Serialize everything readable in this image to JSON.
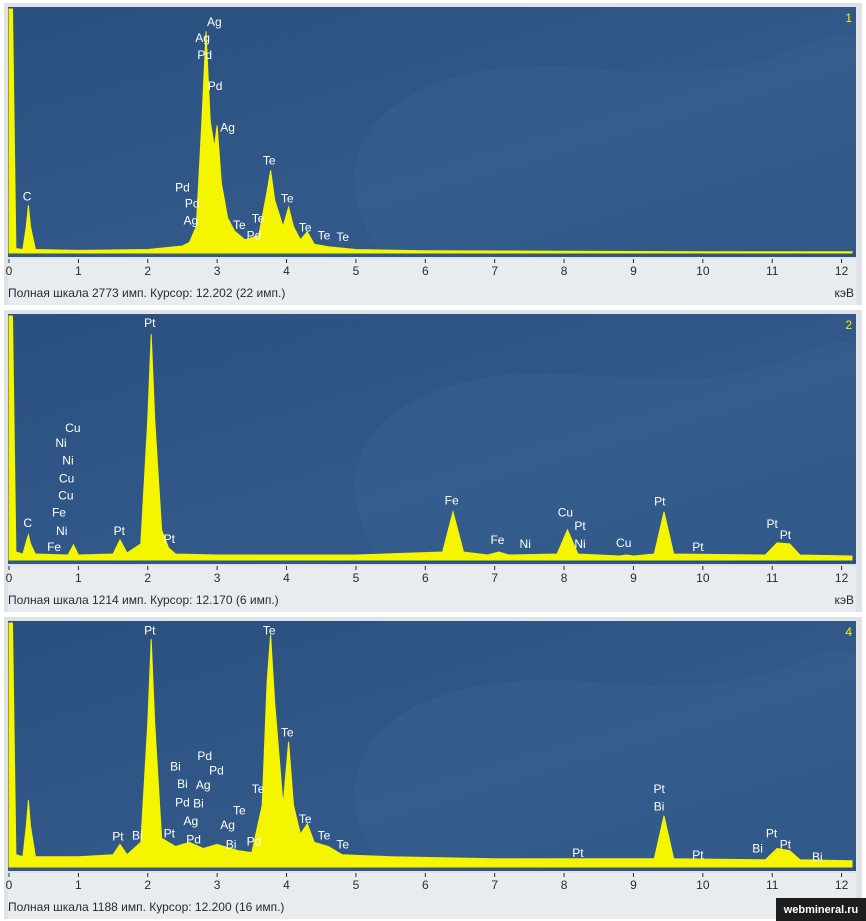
{
  "chart_data": [
    {
      "type": "area",
      "panel": "1",
      "color": "#f5f500",
      "unit": "кэВ",
      "footer": "Полная шкала 2773 имп. Курсор: 12.202  (22 имп.)",
      "xlim": [
        0,
        12.15
      ],
      "ylim": [
        0,
        2773
      ],
      "xticks": [
        0,
        1,
        2,
        3,
        4,
        5,
        6,
        7,
        8,
        9,
        10,
        11,
        12
      ],
      "x": [
        0,
        0,
        0.05,
        0.1,
        0.2,
        0.25,
        0.28,
        0.31,
        0.38,
        1,
        2,
        2.5,
        2.6,
        2.7,
        2.78,
        2.84,
        2.9,
        2.96,
        3.0,
        3.06,
        3.15,
        3.25,
        3.4,
        3.6,
        3.72,
        3.77,
        3.83,
        3.95,
        4.03,
        4.1,
        4.2,
        4.3,
        4.4,
        4.6,
        5,
        6,
        8,
        10,
        12.15,
        12.15
      ],
      "values": [
        0,
        2773,
        2773,
        50,
        40,
        300,
        543,
        300,
        40,
        30,
        40,
        80,
        120,
        300,
        1500,
        2520,
        1500,
        1200,
        1450,
        800,
        400,
        250,
        150,
        200,
        700,
        940,
        600,
        300,
        520,
        300,
        150,
        240,
        100,
        70,
        40,
        25,
        20,
        15,
        15,
        0
      ],
      "annotations": [
        {
          "text": "C",
          "x": 0.26,
          "y": 634
        },
        {
          "text": "Ag",
          "x": 2.96,
          "y": 2614
        },
        {
          "text": "Ag",
          "x": 2.79,
          "y": 2433
        },
        {
          "text": "Pd",
          "x": 2.82,
          "y": 2241
        },
        {
          "text": "Pd",
          "x": 2.97,
          "y": 1890
        },
        {
          "text": "Ag",
          "x": 3.15,
          "y": 1415
        },
        {
          "text": "Te",
          "x": 3.75,
          "y": 1041
        },
        {
          "text": "Pd",
          "x": 2.5,
          "y": 736
        },
        {
          "text": "Pd",
          "x": 2.64,
          "y": 555
        },
        {
          "text": "Ag",
          "x": 2.62,
          "y": 362
        },
        {
          "text": "Te",
          "x": 4.01,
          "y": 611
        },
        {
          "text": "Te",
          "x": 3.59,
          "y": 385
        },
        {
          "text": "Te",
          "x": 3.32,
          "y": 306
        },
        {
          "text": "Pd",
          "x": 3.53,
          "y": 192
        },
        {
          "text": "Te",
          "x": 4.27,
          "y": 283
        },
        {
          "text": "Te",
          "x": 4.54,
          "y": 192
        },
        {
          "text": "Te",
          "x": 4.81,
          "y": 170
        }
      ]
    },
    {
      "type": "area",
      "panel": "2",
      "color": "#f5f500",
      "unit": "кэВ",
      "footer": "Полная шкала 1214 имп. Курсор: 12.170  (6 имп.)",
      "xlim": [
        0,
        12.15
      ],
      "ylim": [
        0,
        1214
      ],
      "xticks": [
        0,
        1,
        2,
        3,
        4,
        5,
        6,
        7,
        8,
        9,
        10,
        11,
        12
      ],
      "x": [
        0,
        0,
        0.05,
        0.1,
        0.2,
        0.25,
        0.28,
        0.31,
        0.38,
        0.85,
        0.93,
        1.0,
        1.5,
        1.6,
        1.7,
        1.9,
        2.0,
        2.05,
        2.1,
        2.2,
        2.3,
        2.4,
        3,
        5,
        6.25,
        6.4,
        6.55,
        6.9,
        7.06,
        7.2,
        7.9,
        8.05,
        8.2,
        8.8,
        8.9,
        9.0,
        9.3,
        9.44,
        9.58,
        10.9,
        11.07,
        11.25,
        11.4,
        12.15,
        12.15
      ],
      "values": [
        0,
        1214,
        1214,
        40,
        30,
        90,
        125,
        80,
        30,
        25,
        75,
        25,
        30,
        100,
        35,
        80,
        700,
        1124,
        700,
        150,
        60,
        30,
        25,
        25,
        40,
        240,
        40,
        25,
        40,
        25,
        30,
        150,
        30,
        20,
        25,
        20,
        30,
        240,
        30,
        25,
        85,
        80,
        25,
        20,
        0
      ],
      "annotations": [
        {
          "text": "Pt",
          "x": 2.03,
          "y": 1174
        },
        {
          "text": "Cu",
          "x": 0.92,
          "y": 652
        },
        {
          "text": "Ni",
          "x": 0.75,
          "y": 577
        },
        {
          "text": "Ni",
          "x": 0.85,
          "y": 492
        },
        {
          "text": "Cu",
          "x": 0.83,
          "y": 401
        },
        {
          "text": "Cu",
          "x": 0.82,
          "y": 316
        },
        {
          "text": "Fe",
          "x": 0.72,
          "y": 231
        },
        {
          "text": "C",
          "x": 0.27,
          "y": 181
        },
        {
          "text": "Ni",
          "x": 0.76,
          "y": 140
        },
        {
          "text": "Fe",
          "x": 0.65,
          "y": 60
        },
        {
          "text": "Pt",
          "x": 1.59,
          "y": 140
        },
        {
          "text": "Pt",
          "x": 2.31,
          "y": 100
        },
        {
          "text": "Fe",
          "x": 6.38,
          "y": 291
        },
        {
          "text": "Fe",
          "x": 7.04,
          "y": 95
        },
        {
          "text": "Ni",
          "x": 7.44,
          "y": 75
        },
        {
          "text": "Cu",
          "x": 8.02,
          "y": 231
        },
        {
          "text": "Pt",
          "x": 8.23,
          "y": 166
        },
        {
          "text": "Ni",
          "x": 8.23,
          "y": 75
        },
        {
          "text": "Cu",
          "x": 8.86,
          "y": 80
        },
        {
          "text": "Pt",
          "x": 9.38,
          "y": 286
        },
        {
          "text": "Pt",
          "x": 9.93,
          "y": 60
        },
        {
          "text": "Pt",
          "x": 11.0,
          "y": 176
        },
        {
          "text": "Pt",
          "x": 11.19,
          "y": 120
        }
      ]
    },
    {
      "type": "area",
      "panel": "4",
      "color": "#f5f500",
      "unit": "кэВ",
      "footer": "Полная шкала 1188 имп. Курсор: 12.200  (16 имп.)",
      "xlim": [
        0,
        12.15
      ],
      "ylim": [
        0,
        1188
      ],
      "xticks": [
        0,
        1,
        2,
        3,
        4,
        5,
        6,
        7,
        8,
        9,
        10,
        11,
        12
      ],
      "x": [
        0,
        0,
        0.05,
        0.1,
        0.2,
        0.25,
        0.28,
        0.31,
        0.38,
        1,
        1.5,
        1.6,
        1.7,
        1.9,
        2.0,
        2.05,
        2.1,
        2.2,
        2.4,
        2.6,
        2.8,
        3.0,
        3.3,
        3.5,
        3.65,
        3.72,
        3.77,
        3.83,
        3.95,
        4.03,
        4.1,
        4.2,
        4.3,
        4.4,
        4.6,
        4.8,
        5.5,
        7,
        9.3,
        9.44,
        9.58,
        10.9,
        11.07,
        11.25,
        11.4,
        12.15,
        12.15
      ],
      "values": [
        0,
        1188,
        1188,
        60,
        50,
        200,
        325,
        200,
        50,
        50,
        60,
        110,
        60,
        120,
        700,
        1110,
        700,
        140,
        100,
        120,
        90,
        110,
        80,
        70,
        300,
        900,
        1130,
        800,
        300,
        610,
        300,
        160,
        210,
        120,
        100,
        60,
        50,
        40,
        40,
        250,
        40,
        35,
        90,
        80,
        35,
        30,
        0
      ],
      "annotations": [
        {
          "text": "Pt",
          "x": 2.03,
          "y": 1147
        },
        {
          "text": "Te",
          "x": 3.75,
          "y": 1147
        },
        {
          "text": "Te",
          "x": 4.01,
          "y": 651
        },
        {
          "text": "Bi",
          "x": 2.4,
          "y": 486
        },
        {
          "text": "Pd",
          "x": 2.82,
          "y": 536
        },
        {
          "text": "Bi",
          "x": 2.5,
          "y": 401
        },
        {
          "text": "Ag",
          "x": 2.8,
          "y": 396
        },
        {
          "text": "Pd",
          "x": 2.99,
          "y": 466
        },
        {
          "text": "Pd",
          "x": 2.5,
          "y": 311
        },
        {
          "text": "Bi",
          "x": 2.73,
          "y": 306
        },
        {
          "text": "Ag",
          "x": 2.62,
          "y": 220
        },
        {
          "text": "Ag",
          "x": 3.15,
          "y": 200
        },
        {
          "text": "Te",
          "x": 3.32,
          "y": 270
        },
        {
          "text": "Te",
          "x": 3.59,
          "y": 376
        },
        {
          "text": "Pt",
          "x": 1.57,
          "y": 145
        },
        {
          "text": "Bi",
          "x": 1.85,
          "y": 150
        },
        {
          "text": "Pt",
          "x": 2.31,
          "y": 160
        },
        {
          "text": "Pd",
          "x": 2.66,
          "y": 130
        },
        {
          "text": "Bi",
          "x": 3.2,
          "y": 105
        },
        {
          "text": "Pd",
          "x": 3.53,
          "y": 120
        },
        {
          "text": "Te",
          "x": 4.27,
          "y": 230
        },
        {
          "text": "Te",
          "x": 4.54,
          "y": 150
        },
        {
          "text": "Te",
          "x": 4.81,
          "y": 105
        },
        {
          "text": "Pt",
          "x": 8.2,
          "y": 65
        },
        {
          "text": "Pt",
          "x": 9.37,
          "y": 376
        },
        {
          "text": "Bi",
          "x": 9.37,
          "y": 290
        },
        {
          "text": "Pt",
          "x": 9.93,
          "y": 55
        },
        {
          "text": "Bi",
          "x": 10.79,
          "y": 85
        },
        {
          "text": "Pt",
          "x": 10.99,
          "y": 160
        },
        {
          "text": "Pt",
          "x": 11.19,
          "y": 105
        },
        {
          "text": "Bi",
          "x": 11.65,
          "y": 45
        }
      ]
    }
  ],
  "watermark": "webmineral.ru"
}
